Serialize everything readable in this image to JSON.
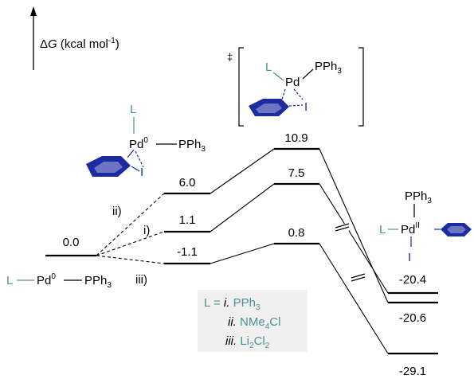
{
  "axis": {
    "label_prefix": "Δ",
    "label_symbol": "G",
    "label_units_open": " (kcal mol",
    "label_units_exp": "-1",
    "label_units_close": ")"
  },
  "ts_marker": "‡",
  "ligand_label": "L",
  "ts_ligand_label": "L",
  "phosphine": "PPh",
  "phosphine_sub": "3",
  "palladium": "Pd",
  "iodide": "I",
  "ox0": "0",
  "oxII": "II",
  "reactant": {
    "l": "L",
    "pd": "Pd",
    "ox": "0",
    "ph": "PPh",
    "sub": "3"
  },
  "pathways": [
    {
      "id": "ii",
      "label": "ii)",
      "energies": [
        "6.0",
        "10.9",
        "-20.4"
      ]
    },
    {
      "id": "i",
      "label": "i)",
      "energies": [
        "1.1",
        "7.5",
        "-20.6"
      ]
    },
    {
      "id": "iii",
      "label": "iii)",
      "energies": [
        "-1.1",
        "0.8",
        "-29.1"
      ]
    }
  ],
  "start_energy": "0.0",
  "legend": {
    "prefix": "L = ",
    "i_num": "i.",
    "i_pre": "PPh",
    "i_sub": "3",
    "ii_num": "ii.",
    "ii_pre": "NMe",
    "ii_sub": "4",
    "ii_post": "Cl",
    "iii_num": "iii.",
    "iii_pre": "Li",
    "iii_sub1": "2",
    "iii_mid": "Cl",
    "iii_sub2": "2"
  },
  "colors": {
    "ligand": "#4a9199",
    "aryne": "#1c2ca0",
    "legend_bg": "#f0f0f0"
  }
}
